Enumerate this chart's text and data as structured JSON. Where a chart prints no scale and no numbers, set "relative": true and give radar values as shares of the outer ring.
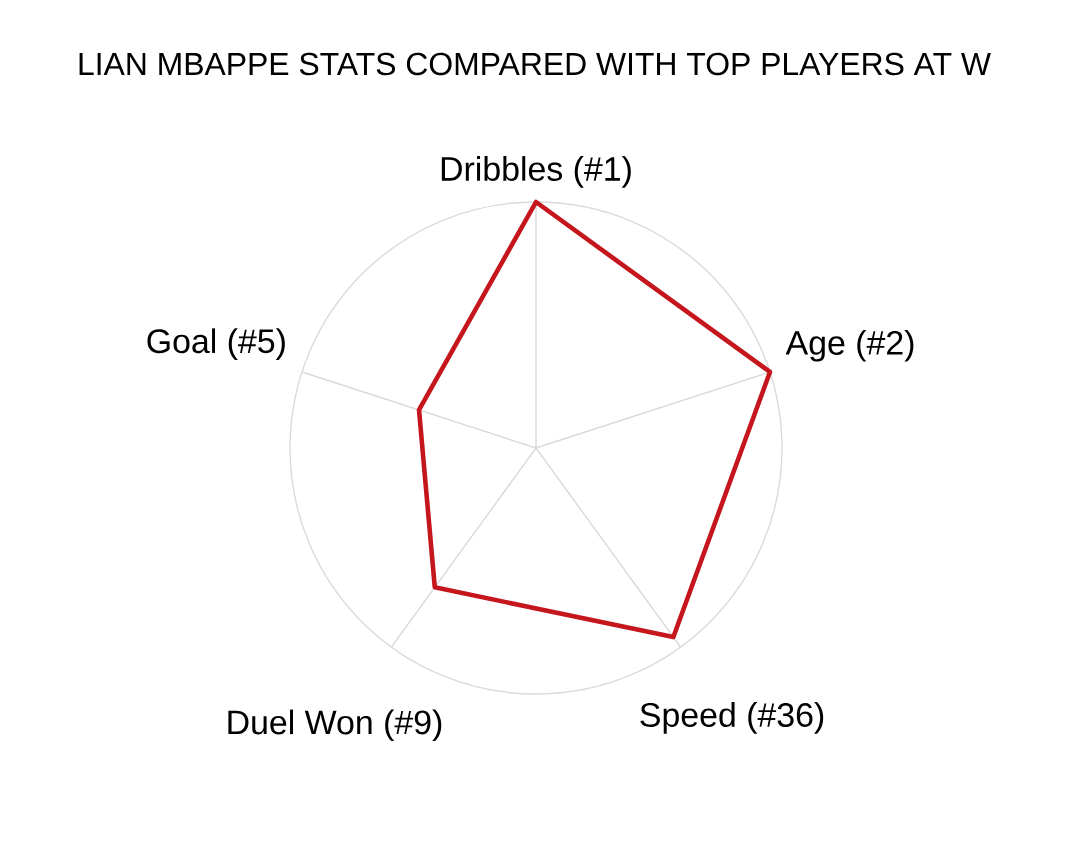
{
  "chart_data": {
    "type": "radar",
    "title": "LIAN MBAPPE STATS COMPARED WITH TOP PLAYERS AT W",
    "categories": [
      "Dribbles (#1)",
      "Age (#2)",
      "Speed (#36)",
      "Duel Won (#9)",
      "Goal (#5)"
    ],
    "relative": true,
    "series": [
      {
        "color": "#c4161c",
        "values": [
          1,
          1,
          0.95,
          0.7,
          0.5
        ]
      }
    ],
    "grid": true
  }
}
